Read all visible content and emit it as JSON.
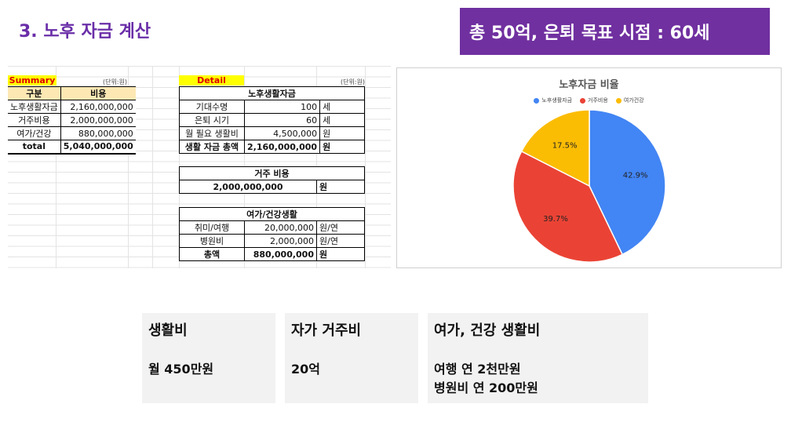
{
  "slide": {
    "title": "3. 노후 자금 계산",
    "banner": "총 50억, 은퇴 목표 시점 : 60세"
  },
  "summary": {
    "label": "Summary",
    "unit": "(단위:원)",
    "headers": [
      "구분",
      "비용"
    ],
    "rows": [
      {
        "name": "노후생활자금",
        "value": "2,160,000,000"
      },
      {
        "name": "거주비용",
        "value": "2,000,000,000"
      },
      {
        "name": "여가/건강",
        "value": "880,000,000"
      },
      {
        "name": "total",
        "value": "5,040,000,000"
      }
    ]
  },
  "detail": {
    "label": "Detail",
    "unit": "(단위:원)",
    "living": {
      "title": "노후생활자금",
      "rows": [
        {
          "name": "기대수명",
          "value": "100",
          "unit": "세"
        },
        {
          "name": "은퇴 시기",
          "value": "60",
          "unit": "세"
        },
        {
          "name": "월 필요 생활비",
          "value": "4,500,000",
          "unit": "원"
        },
        {
          "name": "생활 자금 총액",
          "value": "2,160,000,000",
          "unit": "원"
        }
      ]
    },
    "housing": {
      "title": "거주 비용",
      "value": "2,000,000,000",
      "unit": "원"
    },
    "leisure": {
      "title": "여가/건강생활",
      "rows": [
        {
          "name": "취미/여행",
          "value": "20,000,000",
          "unit": "원/연"
        },
        {
          "name": "병원비",
          "value": "2,000,000",
          "unit": "원/연"
        },
        {
          "name": "총액",
          "value": "880,000,000",
          "unit": "원"
        }
      ]
    }
  },
  "chart_data": {
    "type": "pie",
    "title": "노후자금 비율",
    "legend_position": "top",
    "categories": [
      "노후생활자금",
      "거주비용",
      "여가건강"
    ],
    "values": [
      42.9,
      39.7,
      17.5
    ],
    "labels": [
      "42.9%",
      "39.7%",
      "17.5%"
    ],
    "colors": [
      "#4285f4",
      "#ea4335",
      "#fbbc04"
    ]
  },
  "cards": [
    {
      "title": "생활비",
      "lines": [
        "월 450만원"
      ]
    },
    {
      "title": "자가 거주비",
      "lines": [
        "20억"
      ]
    },
    {
      "title": "여가, 건강 생활비",
      "lines": [
        "여행 연 2천만원",
        "병원비 연 200만원"
      ]
    }
  ]
}
